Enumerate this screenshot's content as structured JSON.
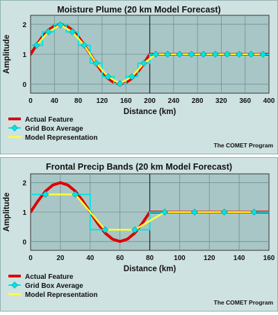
{
  "chart_data": [
    {
      "type": "line",
      "title": "Moisture Plume (20 km Model Forecast)",
      "xlabel": "Distance (km)",
      "ylabel": "Amplitude",
      "xlim": [
        0,
        400
      ],
      "ylim": [
        -0.3,
        2.3
      ],
      "xticks": [
        0,
        40,
        80,
        120,
        160,
        200,
        240,
        280,
        320,
        360,
        400
      ],
      "yticks": [
        0,
        1,
        2
      ],
      "grid": true,
      "divider_x": 200,
      "legend_position": "bottom-left",
      "credit": "The COMET Program",
      "series": [
        {
          "name": "Actual Feature",
          "color": "#dd0000",
          "kind": "curve",
          "x": [
            0,
            10,
            20,
            30,
            40,
            50,
            60,
            70,
            80,
            90,
            100,
            110,
            120,
            130,
            140,
            150,
            160,
            170,
            180,
            190,
            200,
            210,
            220,
            240,
            260,
            280,
            300,
            320,
            340,
            360,
            380,
            400
          ],
          "y": [
            1.0,
            1.31,
            1.59,
            1.81,
            1.95,
            2.0,
            1.95,
            1.81,
            1.59,
            1.31,
            1.0,
            0.69,
            0.41,
            0.19,
            0.05,
            0.0,
            0.05,
            0.19,
            0.41,
            0.69,
            1.0,
            1.0,
            1.0,
            1.0,
            1.0,
            1.0,
            1.0,
            1.0,
            1.0,
            1.0,
            1.0,
            1.0
          ]
        },
        {
          "name": "Grid Box Average",
          "color": "#00e5e5",
          "kind": "steps_markers",
          "x": [
            10,
            30,
            50,
            70,
            90,
            110,
            130,
            150,
            170,
            190,
            210,
            230,
            250,
            270,
            290,
            310,
            330,
            350,
            370,
            390
          ],
          "y": [
            1.3,
            1.75,
            1.98,
            1.75,
            1.3,
            0.7,
            0.25,
            0.02,
            0.25,
            0.7,
            1.0,
            1.0,
            1.0,
            1.0,
            1.0,
            1.0,
            1.0,
            1.0,
            1.0,
            1.0
          ]
        },
        {
          "name": "Model Representation",
          "color": "#ffff33",
          "kind": "line",
          "x": [
            10,
            30,
            50,
            70,
            90,
            110,
            130,
            150,
            170,
            190,
            210,
            230,
            250,
            270,
            290,
            310,
            330,
            350,
            370,
            390
          ],
          "y": [
            1.3,
            1.75,
            1.98,
            1.75,
            1.3,
            0.7,
            0.25,
            0.02,
            0.25,
            0.7,
            1.0,
            1.0,
            1.0,
            1.0,
            1.0,
            1.0,
            1.0,
            1.0,
            1.0,
            1.0
          ]
        }
      ]
    },
    {
      "type": "line",
      "title": "Frontal Precip Bands (20 km Model Forecast)",
      "xlabel": "Distance (km)",
      "ylabel": "Amplitude",
      "xlim": [
        0,
        160
      ],
      "ylim": [
        -0.3,
        2.3
      ],
      "xticks": [
        0,
        20,
        40,
        60,
        80,
        100,
        120,
        140,
        160
      ],
      "yticks": [
        0,
        1,
        2
      ],
      "grid": true,
      "divider_x": 80,
      "legend_position": "bottom-left",
      "credit": "The COMET Program",
      "series": [
        {
          "name": "Actual Feature",
          "color": "#dd0000",
          "kind": "curve",
          "x": [
            0,
            5,
            10,
            15,
            20,
            25,
            30,
            35,
            40,
            45,
            50,
            55,
            60,
            65,
            70,
            75,
            80,
            90,
            100,
            120,
            140,
            160
          ],
          "y": [
            1.0,
            1.38,
            1.71,
            1.92,
            2.0,
            1.92,
            1.71,
            1.38,
            1.0,
            0.62,
            0.29,
            0.08,
            0.0,
            0.08,
            0.29,
            0.62,
            1.0,
            1.0,
            1.0,
            1.0,
            1.0,
            1.0
          ]
        },
        {
          "name": "Grid Box Average",
          "color": "#00e5e5",
          "kind": "steps_markers",
          "x": [
            10,
            30,
            50,
            70,
            90,
            110,
            130,
            150
          ],
          "y": [
            1.6,
            1.6,
            0.4,
            0.4,
            1.0,
            1.0,
            1.0,
            1.0
          ]
        },
        {
          "name": "Model Representation",
          "color": "#ffff33",
          "kind": "line",
          "x": [
            10,
            30,
            50,
            70,
            90,
            110,
            130,
            150
          ],
          "y": [
            1.6,
            1.6,
            0.4,
            0.4,
            1.0,
            1.0,
            1.0,
            1.0
          ]
        }
      ]
    }
  ]
}
